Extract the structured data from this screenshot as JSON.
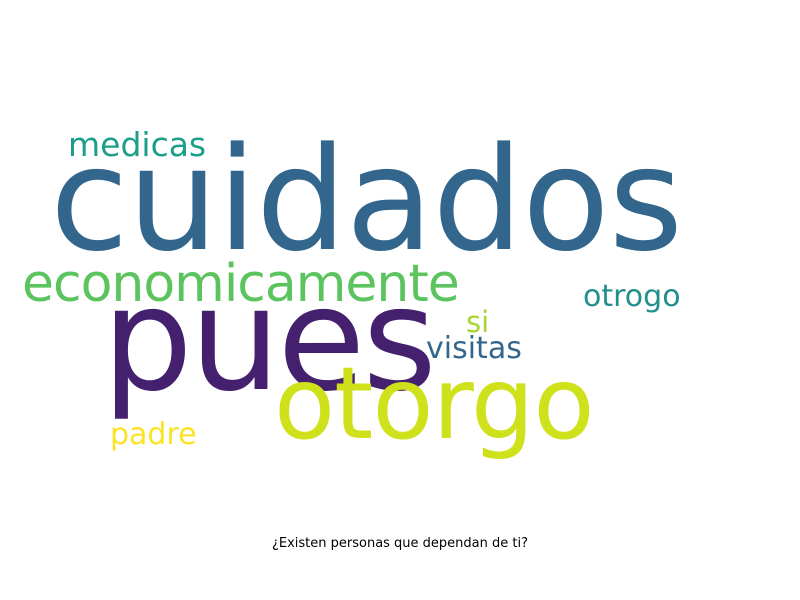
{
  "wordcloud": {
    "words": {
      "cuidados": {
        "text": "cuidados",
        "color": "#33668c"
      },
      "pues": {
        "text": "pues",
        "color": "#45206e"
      },
      "otorgo": {
        "text": "otorgo",
        "color": "#cfe11b"
      },
      "economicamente": {
        "text": "economicamente",
        "color": "#5bc45e"
      },
      "medicas": {
        "text": "medicas",
        "color": "#1d9e89"
      },
      "otrogo": {
        "text": "otrogo",
        "color": "#21908c"
      },
      "si": {
        "text": "si",
        "color": "#a5d632"
      },
      "visitas": {
        "text": "visitas",
        "color": "#33668c"
      },
      "padre": {
        "text": "padre",
        "color": "#fbe327"
      }
    },
    "caption": "¿Existen personas que dependan de ti?"
  }
}
